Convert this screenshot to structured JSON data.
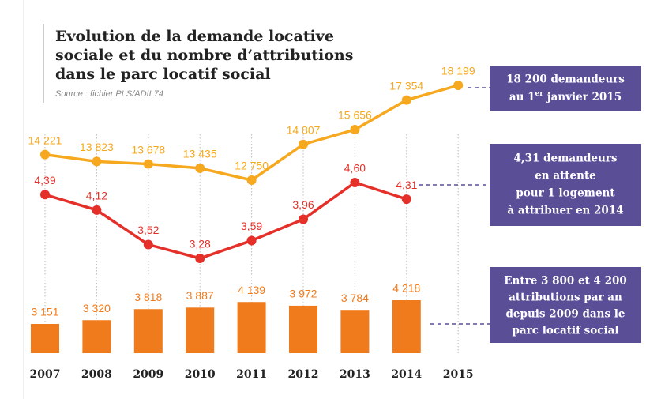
{
  "chart_data": {
    "type": "combo",
    "title": [
      "Evolution de la demande locative",
      "sociale et du nombre d’attributions",
      "dans le parc locatif social"
    ],
    "source": "Source : fichier PLS/ADIL74",
    "categories": [
      "2007",
      "2008",
      "2009",
      "2010",
      "2011",
      "2012",
      "2013",
      "2014",
      "2015"
    ],
    "series": [
      {
        "type": "line",
        "color": "#f6a81e",
        "values": [
          14221,
          13823,
          13678,
          13435,
          12750,
          14807,
          15656,
          17354,
          18199
        ],
        "value_labels": [
          "14 221",
          "13 823",
          "13 678",
          "13 435",
          "12 750",
          "14 807",
          "15 656",
          "17 354",
          "18 199"
        ]
      },
      {
        "type": "line",
        "color": "#e5302a",
        "values": [
          4.39,
          4.12,
          3.52,
          3.28,
          3.59,
          3.96,
          4.6,
          4.31,
          null
        ],
        "value_labels": [
          "4,39",
          "4,12",
          "3,52",
          "3,28",
          "3,59",
          "3,96",
          "4,60",
          "4,31",
          null
        ]
      },
      {
        "type": "bar",
        "color": "#f07b1d",
        "values": [
          3151,
          3320,
          3818,
          3887,
          4139,
          3972,
          3784,
          4218,
          null
        ],
        "value_labels": [
          "3 151",
          "3 320",
          "3 818",
          "3 887",
          "4 139",
          "3 972",
          "3 784",
          "4 218",
          null
        ]
      }
    ],
    "annotations": [
      {
        "lines": [
          "18 200 demandeurs",
          "au 1",
          "er",
          " janvier 2015"
        ]
      },
      {
        "lines": [
          "4,31 demandeurs",
          "en attente",
          "pour 1 logement",
          "à attribuer en 2014"
        ]
      },
      {
        "lines": [
          "Entre 3 800 et 4 200",
          "attributions par an",
          "depuis 2009 dans le",
          "parc locatif social"
        ]
      }
    ],
    "annotation_color": "#5a4e97"
  }
}
